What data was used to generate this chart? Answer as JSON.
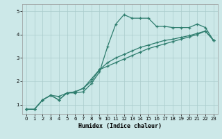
{
  "title": "",
  "xlabel": "Humidex (Indice chaleur)",
  "bg_color": "#cce8e8",
  "grid_color": "#aacccc",
  "line_color": "#2e7d6e",
  "xlim": [
    -0.5,
    23.5
  ],
  "ylim": [
    0.6,
    5.3
  ],
  "xticks": [
    0,
    1,
    2,
    3,
    4,
    5,
    6,
    7,
    8,
    9,
    10,
    11,
    12,
    13,
    14,
    15,
    16,
    17,
    18,
    19,
    20,
    21,
    22,
    23
  ],
  "yticks": [
    1,
    2,
    3,
    4,
    5
  ],
  "line1_x": [
    0,
    1,
    2,
    3,
    4,
    5,
    6,
    7,
    8,
    9,
    10,
    11,
    12,
    13,
    14,
    15,
    16,
    17,
    18,
    19,
    20,
    21,
    22,
    23
  ],
  "line1_y": [
    0.8,
    0.8,
    1.2,
    1.4,
    1.2,
    1.5,
    1.5,
    1.55,
    1.9,
    2.4,
    3.5,
    4.45,
    4.85,
    4.7,
    4.7,
    4.7,
    4.35,
    4.35,
    4.3,
    4.3,
    4.3,
    4.45,
    4.3,
    3.75
  ],
  "line2_x": [
    0,
    1,
    2,
    3,
    4,
    5,
    6,
    7,
    8,
    9,
    10,
    11,
    12,
    13,
    14,
    15,
    16,
    17,
    18,
    19,
    20,
    21,
    22,
    23
  ],
  "line2_y": [
    0.8,
    0.8,
    1.2,
    1.4,
    1.2,
    1.5,
    1.55,
    1.7,
    2.0,
    2.5,
    2.8,
    3.0,
    3.15,
    3.3,
    3.45,
    3.55,
    3.65,
    3.75,
    3.8,
    3.88,
    3.95,
    4.05,
    4.15,
    3.75
  ],
  "line3_x": [
    0,
    1,
    2,
    3,
    4,
    5,
    6,
    7,
    8,
    9,
    10,
    11,
    12,
    13,
    14,
    15,
    16,
    17,
    18,
    19,
    20,
    21,
    22,
    23
  ],
  "line3_y": [
    0.8,
    0.8,
    1.2,
    1.4,
    1.35,
    1.5,
    1.55,
    1.7,
    2.1,
    2.5,
    2.65,
    2.8,
    2.95,
    3.1,
    3.25,
    3.4,
    3.5,
    3.6,
    3.7,
    3.8,
    3.9,
    4.0,
    4.15,
    3.75
  ],
  "xlabel_fontsize": 6,
  "tick_fontsize": 5
}
